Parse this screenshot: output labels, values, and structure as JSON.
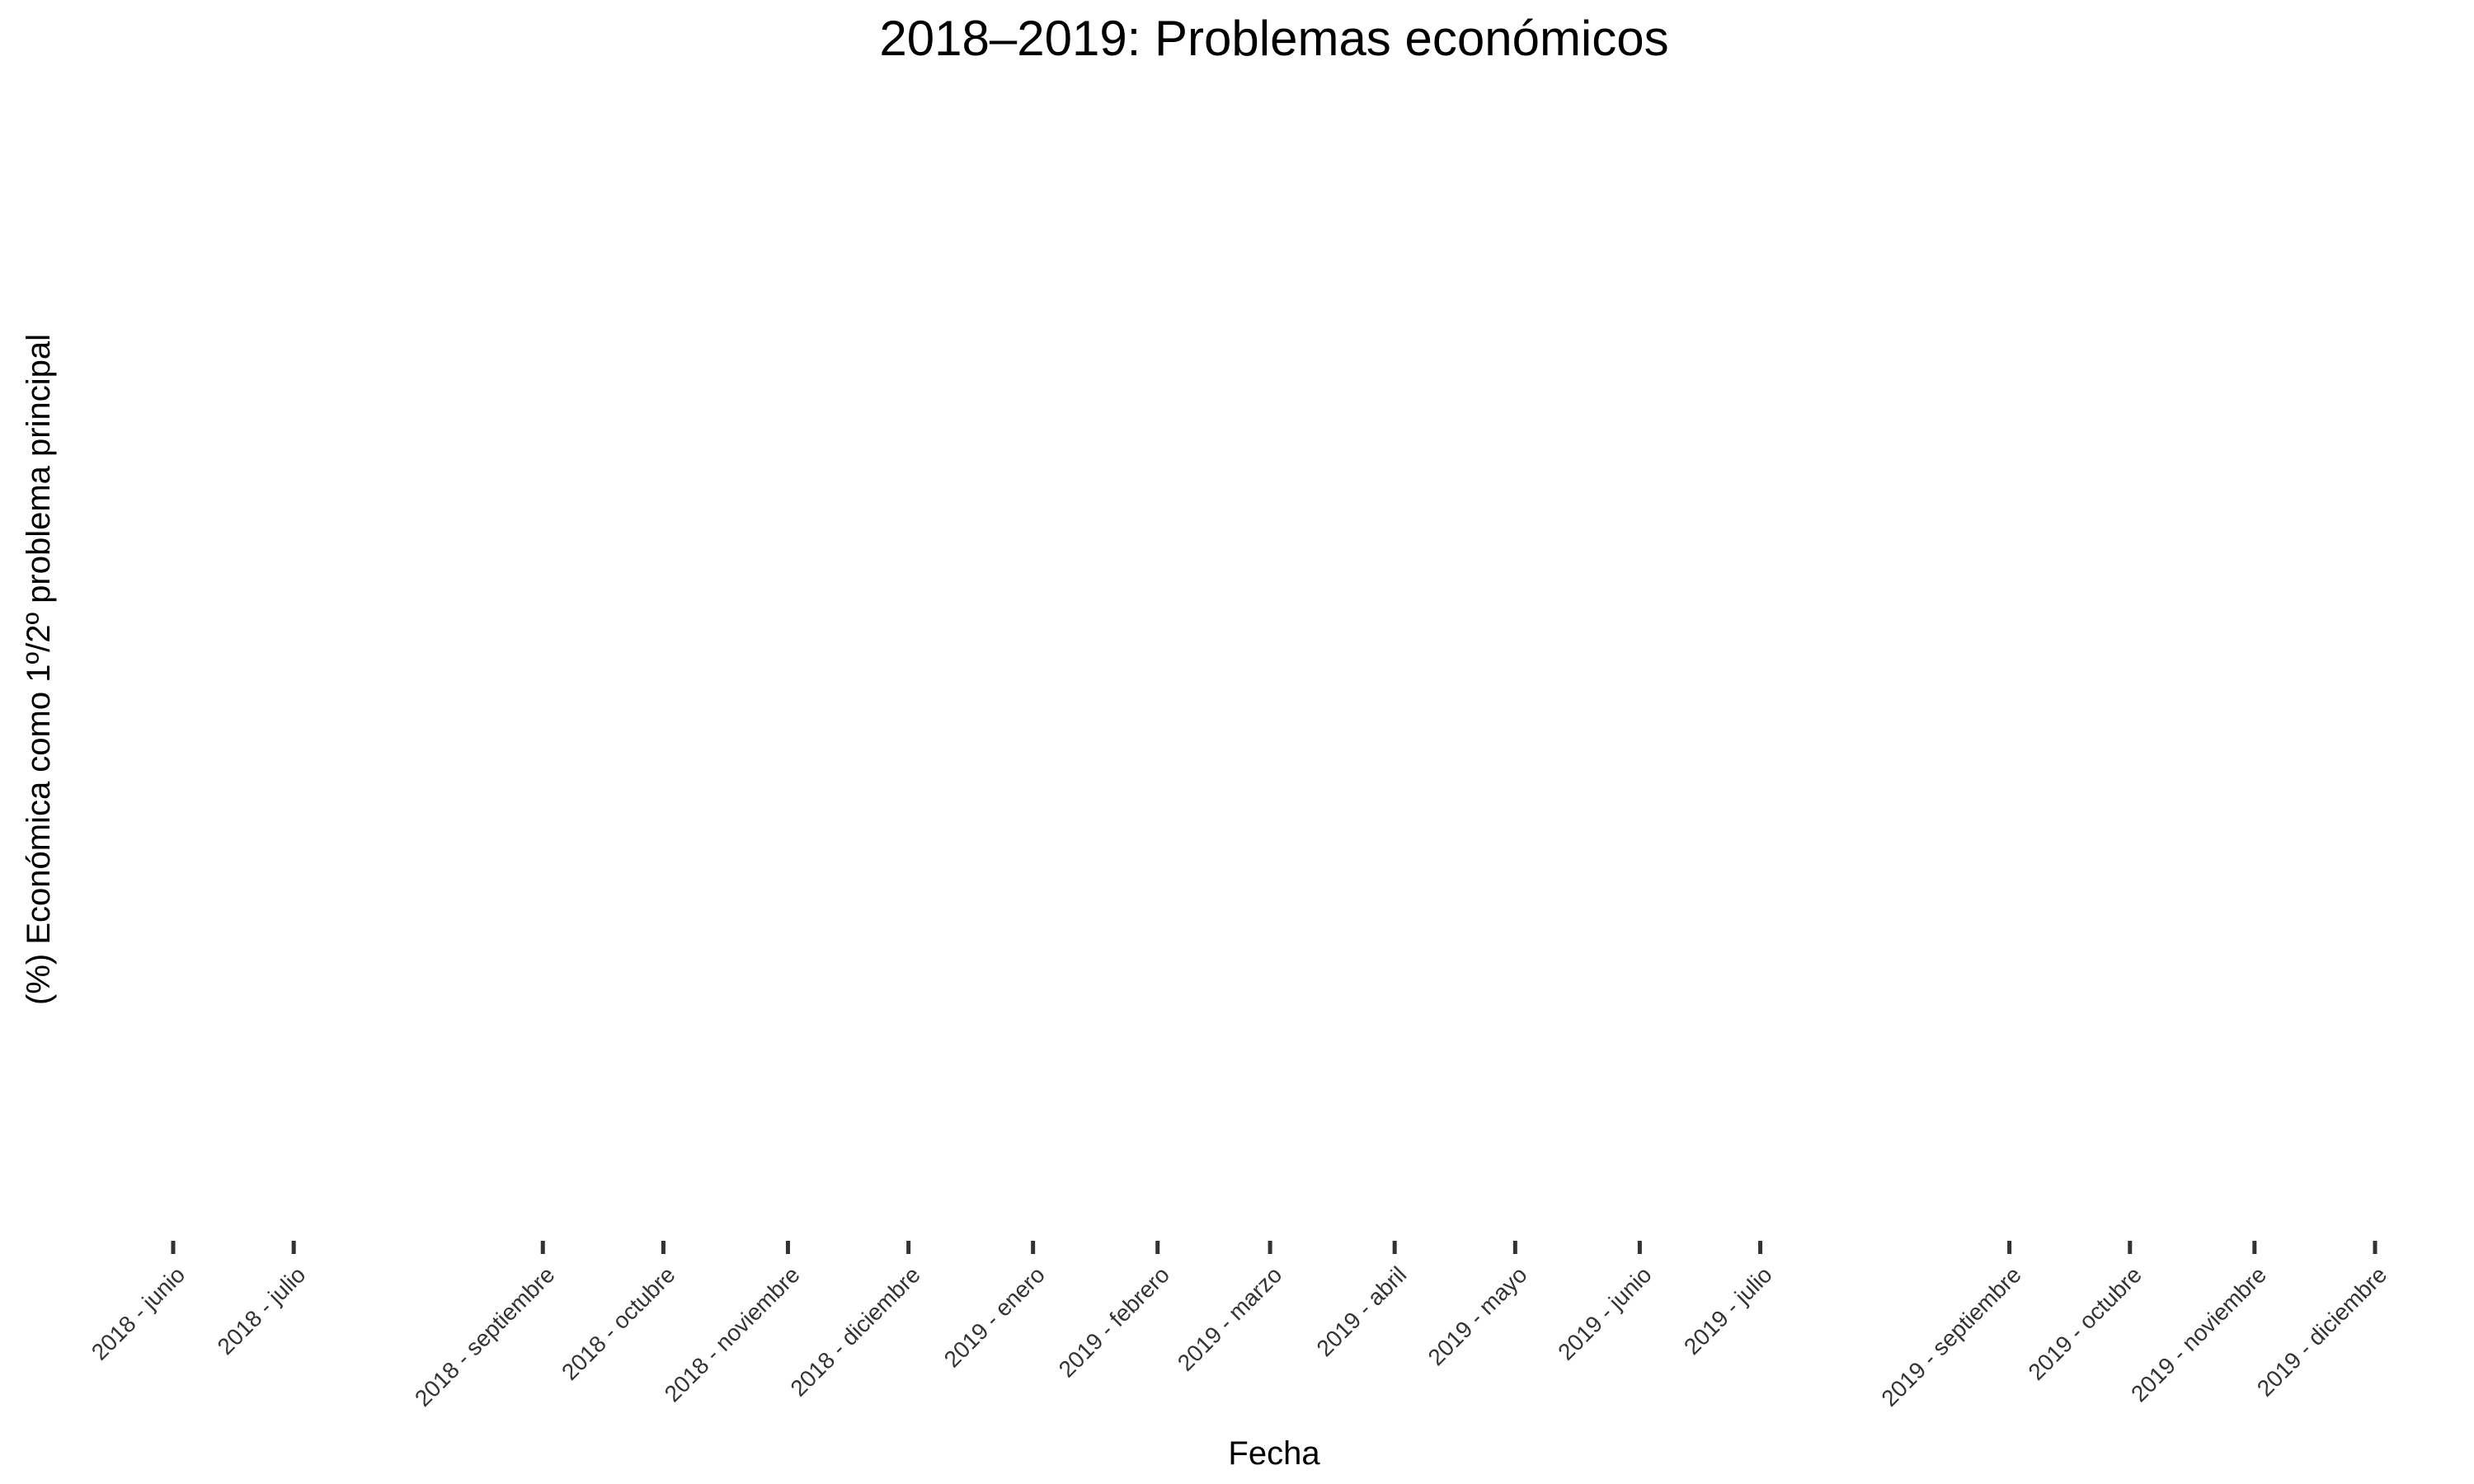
{
  "chart_data": {
    "type": "line",
    "title": "2018–2019: Problemas económicos",
    "xlabel": "Fecha",
    "ylabel": "(%) Económica como 1º/2º problema principal",
    "x": [
      "2018 - junio",
      "2018 - julio",
      "2018 - septiembre",
      "2018 - octubre",
      "2018 - noviembre",
      "2018 - diciembre",
      "2019 - enero",
      "2019 - febrero",
      "2019 - marzo",
      "2019 - abril",
      "2019 - mayo",
      "2019 - junio",
      "2019 - julio",
      "2019 - septiembre",
      "2019 - octubre",
      "2019 - noviembre",
      "2019 - diciembre"
    ],
    "series": [],
    "grid": false,
    "legend": "none"
  }
}
